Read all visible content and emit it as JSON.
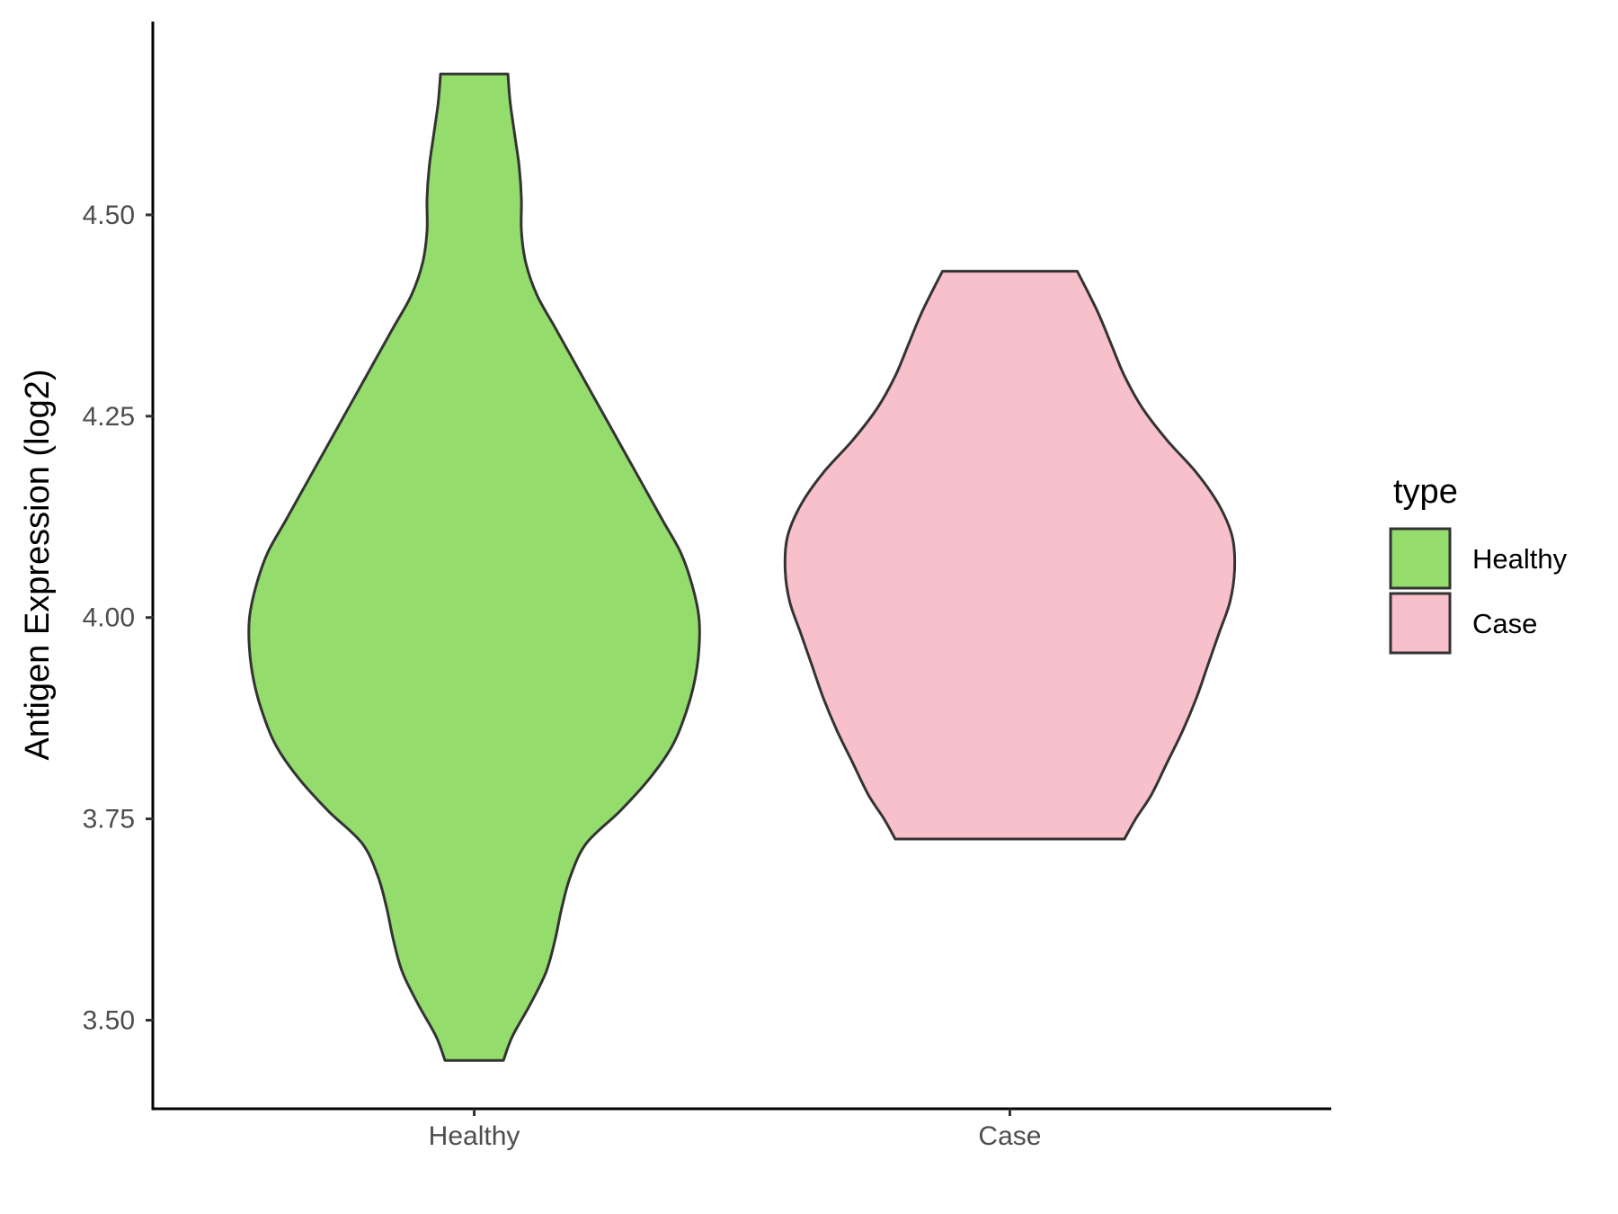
{
  "chart_data": {
    "type": "violin",
    "title": "",
    "xlabel": "",
    "ylabel": "Antigen Expression (log2)",
    "ylim": [
      3.39,
      4.74
    ],
    "y_ticks": [
      "3.50",
      "3.75",
      "4.00",
      "4.25",
      "4.50"
    ],
    "categories": [
      "Healthy",
      "Case"
    ],
    "series": [
      {
        "name": "Healthy",
        "color": "#94DC6C",
        "y_min": 3.45,
        "y_max": 4.675,
        "density_profile": [
          [
            3.45,
            0.13
          ],
          [
            3.48,
            0.17
          ],
          [
            3.52,
            0.25
          ],
          [
            3.56,
            0.32
          ],
          [
            3.6,
            0.36
          ],
          [
            3.64,
            0.39
          ],
          [
            3.68,
            0.43
          ],
          [
            3.72,
            0.5
          ],
          [
            3.76,
            0.65
          ],
          [
            3.8,
            0.78
          ],
          [
            3.84,
            0.88
          ],
          [
            3.88,
            0.94
          ],
          [
            3.92,
            0.98
          ],
          [
            3.96,
            1.0
          ],
          [
            4.0,
            1.0
          ],
          [
            4.04,
            0.97
          ],
          [
            4.08,
            0.92
          ],
          [
            4.12,
            0.84
          ],
          [
            4.16,
            0.76
          ],
          [
            4.2,
            0.68
          ],
          [
            4.24,
            0.6
          ],
          [
            4.28,
            0.52
          ],
          [
            4.32,
            0.44
          ],
          [
            4.36,
            0.36
          ],
          [
            4.4,
            0.28
          ],
          [
            4.44,
            0.23
          ],
          [
            4.48,
            0.21
          ],
          [
            4.52,
            0.21
          ],
          [
            4.56,
            0.2
          ],
          [
            4.6,
            0.18
          ],
          [
            4.64,
            0.16
          ],
          [
            4.675,
            0.15
          ]
        ]
      },
      {
        "name": "Case",
        "color": "#F8C0CB",
        "y_min": 3.725,
        "y_max": 4.43,
        "density_profile": [
          [
            3.725,
            0.51
          ],
          [
            3.75,
            0.56
          ],
          [
            3.78,
            0.63
          ],
          [
            3.82,
            0.7
          ],
          [
            3.86,
            0.77
          ],
          [
            3.9,
            0.83
          ],
          [
            3.94,
            0.88
          ],
          [
            3.98,
            0.93
          ],
          [
            4.02,
            0.98
          ],
          [
            4.06,
            1.0
          ],
          [
            4.1,
            0.99
          ],
          [
            4.14,
            0.93
          ],
          [
            4.18,
            0.83
          ],
          [
            4.22,
            0.7
          ],
          [
            4.26,
            0.59
          ],
          [
            4.3,
            0.51
          ],
          [
            4.34,
            0.45
          ],
          [
            4.38,
            0.39
          ],
          [
            4.43,
            0.3
          ]
        ]
      }
    ],
    "legend": {
      "title": "type",
      "placement": "right",
      "entries": [
        "Healthy",
        "Case"
      ]
    },
    "grid": false
  }
}
